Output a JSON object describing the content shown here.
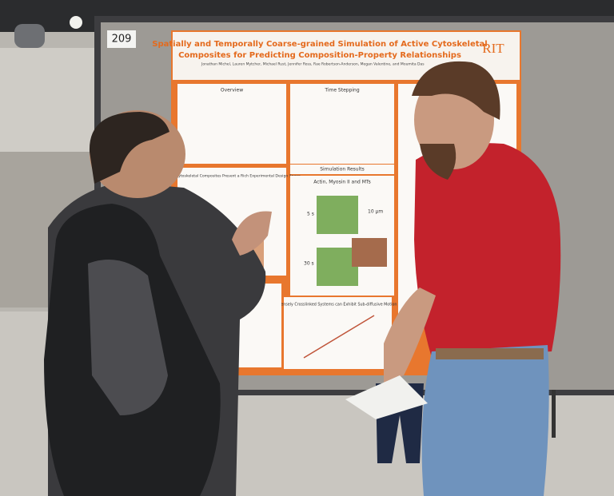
{
  "booth_number": "209",
  "poster": {
    "title_lines": [
      "Spatially and Temporally Coarse-grained Simulation of Active Cytoskeletal",
      "Composites for Predicting Composition-Property Relationships"
    ],
    "logo": "RIT",
    "authors": "Jonathan Michel, Lauren Mytcher, Michael Rust, Jennifer Ross, Rae Robertson-Anderson, Megan Valentine, and Moumita Das",
    "sections": [
      "Overview",
      "Time Stepping",
      "Simulation Results",
      "Active Cytoskeletal Composites Present a Rich Experimental Design Space",
      "Actin, Myosin II and MTs",
      "Densely Crosslinked Systems can Exhibit Sub-diffusive Motion"
    ],
    "labels": [
      "5 s",
      "30 s",
      "10 μm"
    ]
  }
}
